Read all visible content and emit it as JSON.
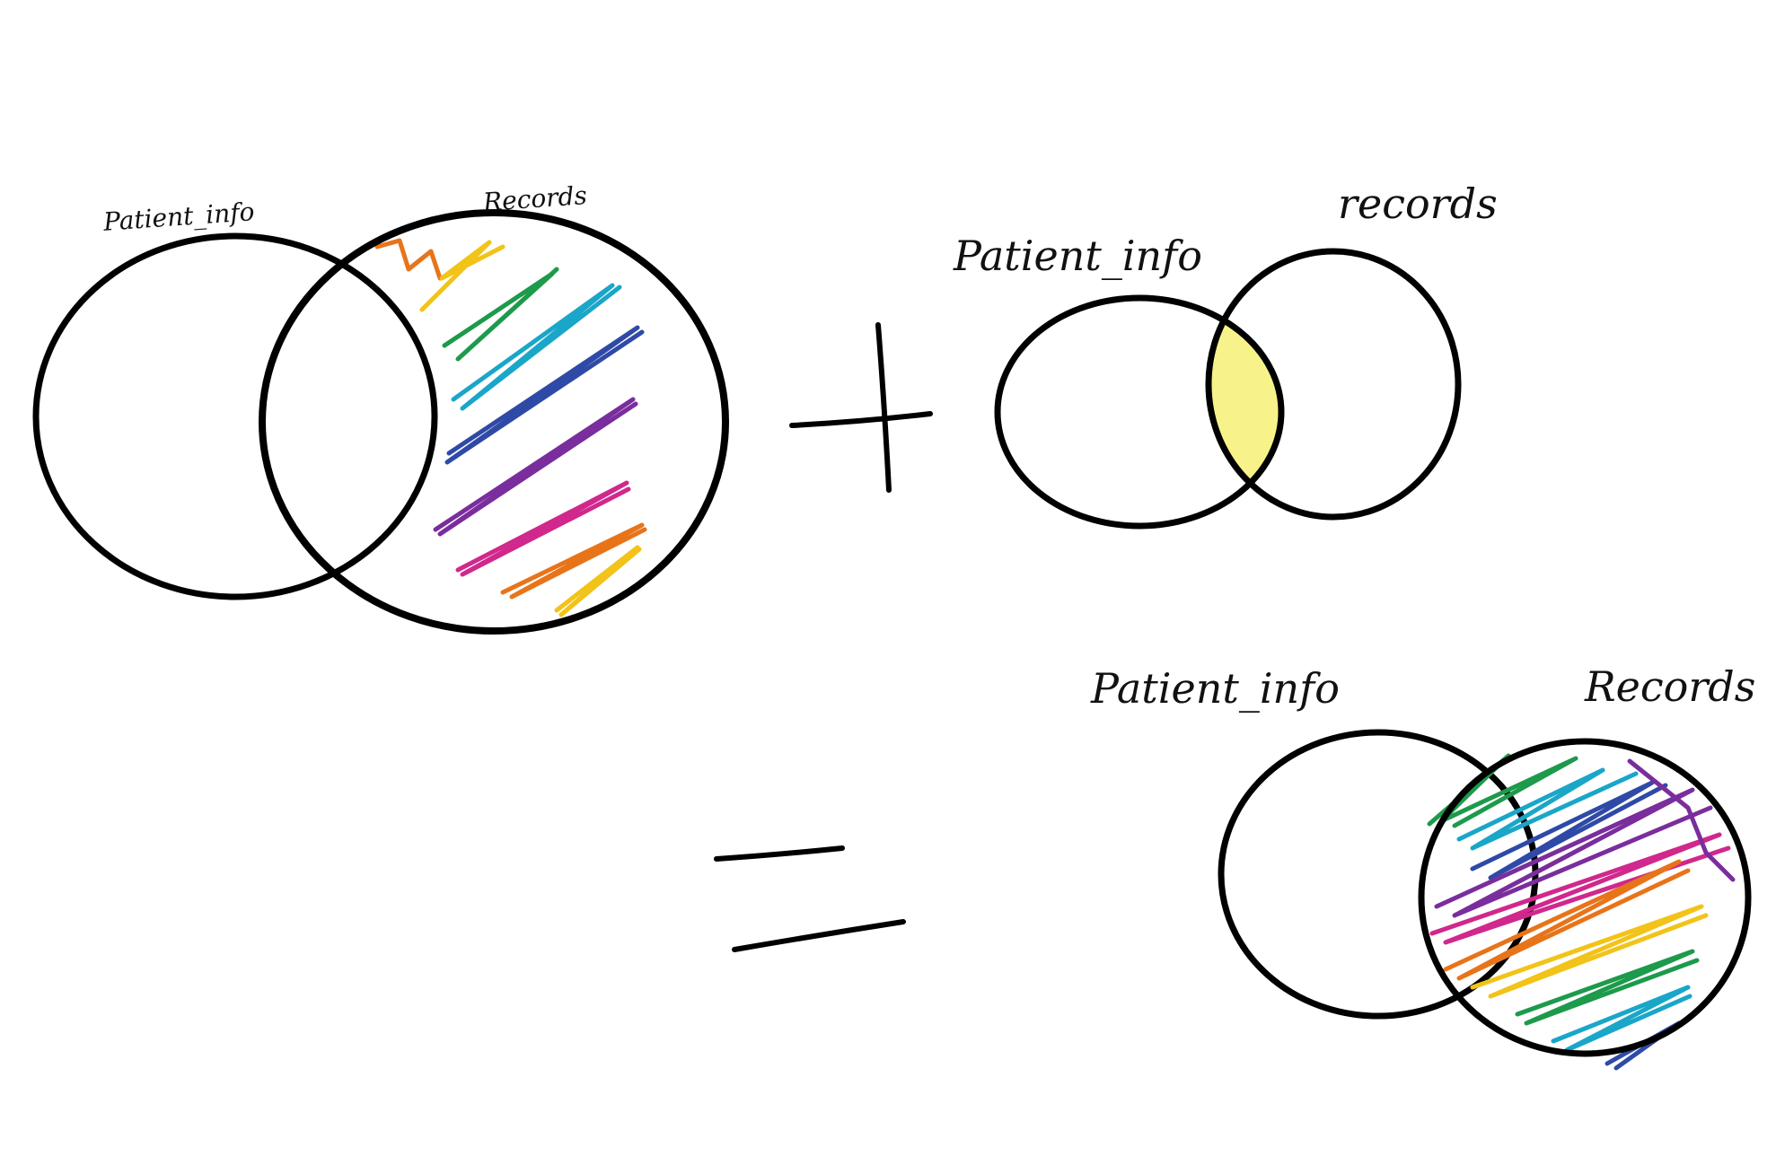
{
  "diagram": {
    "ink_color": "#000000",
    "highlight_color": "#f7f38a",
    "scribble_colors": [
      "#e8741a",
      "#f2c318",
      "#1d9a4b",
      "#1aa6c8",
      "#2f4aa6",
      "#7a2d9c",
      "#d0288c"
    ],
    "groups": [
      {
        "id": "left-join",
        "labels": {
          "left": "Patient_info",
          "right": "Records"
        },
        "shaded_region": "right-exclusive",
        "fill_style": "rainbow-scribble"
      },
      {
        "operator": "+"
      },
      {
        "id": "inner-join",
        "labels": {
          "left": "Patient_info",
          "right": "records"
        },
        "shaded_region": "intersection",
        "fill_style": "yellow-highlight"
      },
      {
        "operator": "="
      },
      {
        "id": "result-join",
        "labels": {
          "left": "Patient_info",
          "right": "Records"
        },
        "shaded_region": "right-full",
        "fill_style": "rainbow-scribble"
      }
    ]
  }
}
